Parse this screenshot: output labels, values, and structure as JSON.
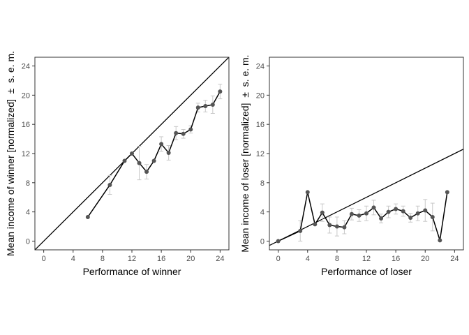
{
  "colors": {
    "line": "#000000",
    "point": "#555555",
    "errorbar": "#c8c8c8",
    "diagonal": "#000000",
    "panel_border": "#333333",
    "tick": "#333333"
  },
  "chart_data": [
    {
      "type": "line",
      "title": "",
      "xlabel": "Performance of winner",
      "ylabel": "Mean income of winner [normalized]  ±  s. e. m.",
      "xlim": [
        -1.2,
        25.2
      ],
      "ylim": [
        -1.2,
        25.2
      ],
      "xticks": [
        0,
        4,
        8,
        12,
        16,
        20,
        24
      ],
      "yticks": [
        0,
        4,
        8,
        12,
        16,
        20,
        24
      ],
      "grid": false,
      "reference_line": "y = x",
      "series": [
        {
          "x": [
            6,
            9,
            11,
            12,
            13,
            14,
            15,
            16,
            17,
            18,
            19,
            20,
            21,
            22,
            23,
            24
          ],
          "y": [
            3.3,
            7.7,
            11.0,
            12.0,
            10.7,
            9.5,
            11.0,
            13.3,
            12.1,
            14.8,
            14.7,
            15.3,
            18.3,
            18.5,
            18.7,
            20.5
          ],
          "err": [
            0,
            1.3,
            0,
            0,
            2.3,
            1.0,
            0,
            1.0,
            1.0,
            0.9,
            0.6,
            0.5,
            0.6,
            0.8,
            1.2,
            1.0
          ]
        }
      ]
    },
    {
      "type": "line",
      "title": "",
      "xlabel": "Performance of loser",
      "ylabel": "Mean income of loser [normalized]  ±  s. e. m.",
      "xlim": [
        -1.2,
        25.2
      ],
      "ylim": [
        -1.2,
        25.2
      ],
      "xticks": [
        0,
        4,
        8,
        12,
        16,
        20,
        24
      ],
      "yticks": [
        0,
        4,
        8,
        12,
        16,
        20,
        24
      ],
      "grid": false,
      "reference_line": "y = 0.5 x",
      "series": [
        {
          "x": [
            0,
            3,
            4,
            5,
            6,
            7,
            8,
            9,
            10,
            11,
            12,
            13,
            14,
            15,
            16,
            17,
            18,
            19,
            20,
            21,
            22,
            23
          ],
          "y": [
            0.0,
            1.4,
            6.7,
            2.3,
            3.9,
            2.2,
            2.0,
            1.9,
            3.7,
            3.5,
            3.8,
            4.6,
            3.1,
            4.0,
            4.4,
            4.1,
            3.2,
            3.8,
            4.2,
            3.3,
            0.1,
            6.7
          ],
          "err": [
            0,
            1.4,
            0,
            0,
            1.2,
            1.1,
            1.3,
            0.9,
            0.8,
            0.8,
            1.0,
            1.0,
            0.6,
            0.8,
            0.7,
            0.7,
            0.6,
            1.0,
            1.5,
            1.9,
            0,
            0
          ]
        }
      ]
    }
  ]
}
